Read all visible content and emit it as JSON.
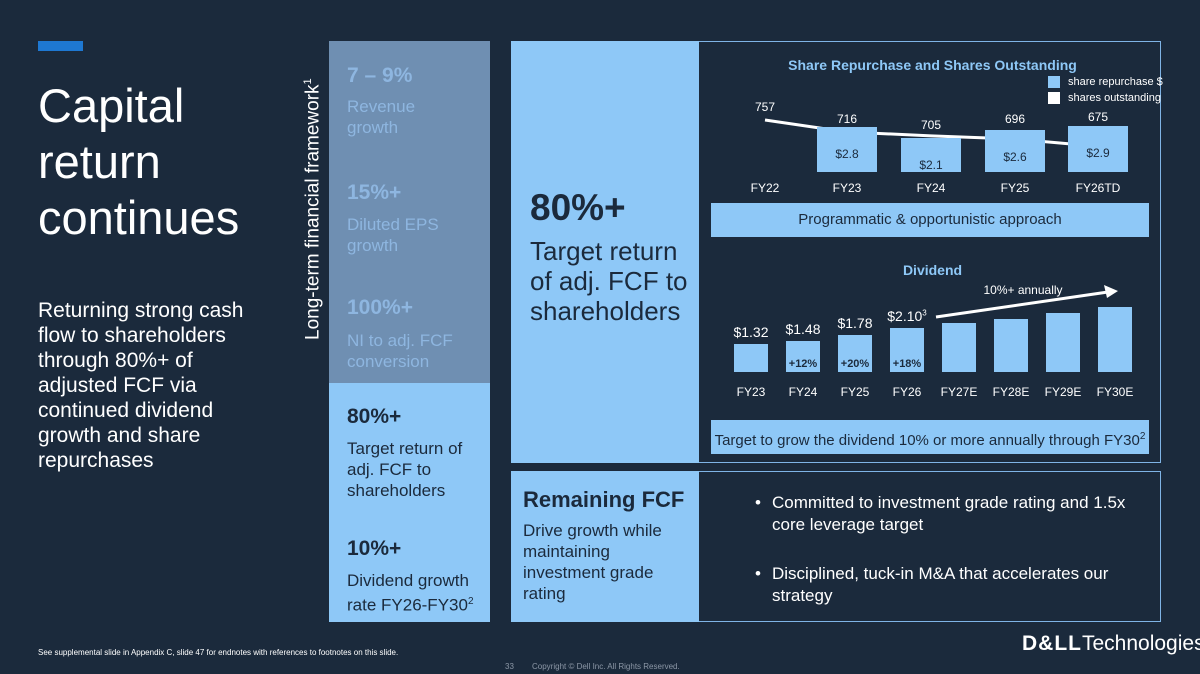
{
  "title": "Capital return continues",
  "subtitle": "Returning strong cash flow to shareholders through 80%+ of adjusted FCF via continued dividend growth and share repurchases",
  "framework_label": "Long-term financial framework",
  "framework_sup": "1",
  "metrics": [
    {
      "value": "7 – 9%",
      "label": "Revenue growth"
    },
    {
      "value": "15%+",
      "label": "Diluted EPS growth"
    },
    {
      "value": "100%+",
      "label": "NI to adj. FCF conversion"
    },
    {
      "value": "80%+",
      "label": "Target return of adj. FCF to shareholders"
    },
    {
      "value": "10%+",
      "label": "Dividend growth rate FY26-FY30",
      "label_sup": "2"
    }
  ],
  "middle": {
    "value": "80%+",
    "label": "Target return of adj. FCF to shareholders"
  },
  "repurchase": {
    "title": "Share Repurchase and Shares Outstanding",
    "legend": [
      {
        "label": "share repurchase $",
        "color": "#8ec8f7"
      },
      {
        "label": "shares outstanding",
        "color": "#ffffff"
      }
    ],
    "band": "Programmatic & opportunistic approach"
  },
  "dividend": {
    "title": "Dividend",
    "trend_label": "10%+ annually",
    "band": "Target to grow the dividend 10% or more annually through FY30",
    "band_sup": "2",
    "value_sup": "3"
  },
  "remaining": {
    "title": "Remaining FCF",
    "label": "Drive growth while maintaining investment grade rating",
    "bullets": [
      "Committed to investment grade rating and 1.5x core leverage target",
      "Disciplined, tuck-in M&A that accelerates our strategy"
    ]
  },
  "footer": {
    "note": "See supplemental slide in Appendix C, slide 47 for endnotes with references to footnotes on this slide.",
    "page": "33",
    "copyright": "Copyright © Dell Inc. All Rights Reserved.",
    "logo_bold": "D&LL",
    "logo_rest": "Technologies"
  },
  "chart_data": [
    {
      "type": "bar",
      "title": "Share Repurchase and Shares Outstanding",
      "categories": [
        "FY22",
        "FY23",
        "FY24",
        "FY25",
        "FY26TD"
      ],
      "series": [
        {
          "name": "share repurchase $",
          "values": [
            null,
            2.8,
            2.1,
            2.6,
            2.9
          ],
          "labels": [
            "",
            "$2.8",
            "$2.1",
            "$2.6",
            "$2.9"
          ]
        },
        {
          "name": "shares outstanding",
          "values": [
            757,
            716,
            705,
            696,
            675
          ],
          "labels": [
            "757",
            "716",
            "705",
            "696",
            "675"
          ]
        }
      ]
    },
    {
      "type": "bar",
      "title": "Dividend",
      "categories": [
        "FY23",
        "FY24",
        "FY25",
        "FY26",
        "FY27E",
        "FY28E",
        "FY29E",
        "FY30E"
      ],
      "values": [
        1.32,
        1.48,
        1.78,
        2.1,
        2.31,
        2.54,
        2.8,
        3.08
      ],
      "labels": [
        "$1.32",
        "$1.48",
        "$1.78",
        "$2.10",
        "",
        "",
        "",
        ""
      ],
      "growth": [
        "",
        "+12%",
        "+20%",
        "+18%",
        "",
        "",
        "",
        ""
      ]
    }
  ]
}
